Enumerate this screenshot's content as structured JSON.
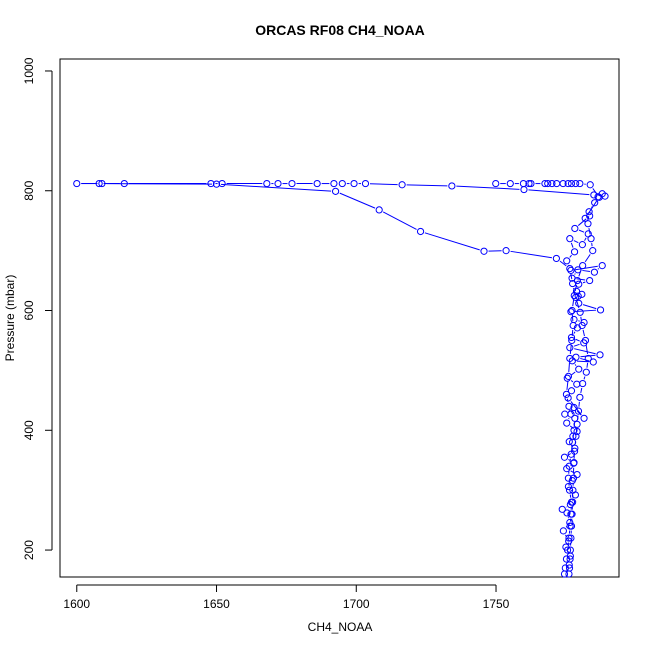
{
  "chart_data": {
    "type": "line",
    "title": "ORCAS RF08 CH4_NOAA",
    "xlabel": "CH4_NOAA",
    "ylabel": "Pressure (mbar)",
    "xlim": [
      1594,
      1794
    ],
    "ylim": [
      1020,
      155
    ],
    "y_reversed": true,
    "grid": false,
    "x_ticks": [
      1600,
      1650,
      1700,
      1750
    ],
    "y_ticks": [
      200,
      400,
      600,
      800,
      1000
    ],
    "series": [
      {
        "color": "#0000ff",
        "marker": "open-circle",
        "points": [
          [
            1774.5,
            160
          ],
          [
            1774.8,
            170
          ],
          [
            1775.2,
            185
          ],
          [
            1775.6,
            200
          ],
          [
            1776.1,
            220
          ],
          [
            1776.5,
            240
          ],
          [
            1776.8,
            260
          ],
          [
            1777.0,
            280
          ],
          [
            1776.3,
            300
          ],
          [
            1775.9,
            320
          ],
          [
            1776.2,
            340
          ],
          [
            1776.9,
            360
          ],
          [
            1777.4,
            380
          ],
          [
            1777.9,
            400
          ],
          [
            1778.2,
            420
          ],
          [
            1776.1,
            440
          ],
          [
            1775.2,
            460
          ],
          [
            1775.9,
            490
          ],
          [
            1776.4,
            520
          ],
          [
            1777.1,
            550
          ],
          [
            1777.6,
            575
          ],
          [
            1777.2,
            600
          ],
          [
            1778.0,
            625
          ],
          [
            1779.1,
            650
          ],
          [
            1781.0,
            675
          ],
          [
            1784.6,
            700
          ],
          [
            1784.0,
            720
          ],
          [
            1782.9,
            745
          ],
          [
            1783.3,
            765
          ],
          [
            1785.3,
            780
          ],
          [
            1786.5,
            790
          ],
          [
            1788.0,
            795
          ],
          [
            1789.0,
            791
          ],
          [
            1785.0,
            793
          ],
          [
            1760.0,
            802
          ],
          [
            1734.2,
            808
          ],
          [
            1716.4,
            810
          ],
          [
            1703.3,
            812
          ],
          [
            1699.2,
            812
          ],
          [
            1695.0,
            812
          ],
          [
            1692.0,
            812
          ],
          [
            1686.0,
            812
          ],
          [
            1677.0,
            812
          ],
          [
            1672.0,
            812
          ],
          [
            1668.0,
            812
          ],
          [
            1652.0,
            812
          ],
          [
            1648.0,
            812
          ],
          [
            1617.0,
            812
          ],
          [
            1608.0,
            812
          ],
          [
            1600.0,
            812
          ],
          [
            1609.0,
            812
          ],
          [
            1650.0,
            811
          ],
          [
            1692.6,
            799
          ],
          [
            1708.2,
            768
          ],
          [
            1723.0,
            732
          ],
          [
            1745.7,
            699
          ],
          [
            1753.6,
            700
          ],
          [
            1771.6,
            687
          ],
          [
            1776.4,
            670
          ],
          [
            1777.4,
            645
          ],
          [
            1778.5,
            622
          ],
          [
            1780.1,
            597
          ],
          [
            1780.8,
            575
          ],
          [
            1782.0,
            550
          ],
          [
            1783.0,
            520
          ],
          [
            1782.3,
            497
          ],
          [
            1781.0,
            478
          ],
          [
            1780.0,
            455
          ],
          [
            1779.5,
            432
          ],
          [
            1779.0,
            410
          ],
          [
            1778.6,
            390
          ],
          [
            1778.2,
            370
          ],
          [
            1777.8,
            345
          ],
          [
            1777.7,
            320
          ],
          [
            1777.5,
            300
          ],
          [
            1777.4,
            280
          ],
          [
            1777.2,
            260
          ],
          [
            1777.0,
            240
          ],
          [
            1776.8,
            220
          ],
          [
            1776.6,
            200
          ],
          [
            1776.5,
            185
          ],
          [
            1776.3,
            170
          ],
          [
            1776.1,
            160
          ],
          [
            1776.2,
            175
          ],
          [
            1776.6,
            190
          ],
          [
            1775.0,
            205
          ],
          [
            1776.0,
            215
          ],
          [
            1774.1,
            232
          ],
          [
            1776.4,
            246
          ],
          [
            1775.4,
            262
          ],
          [
            1773.7,
            268
          ],
          [
            1776.6,
            276
          ],
          [
            1778.4,
            292
          ],
          [
            1775.9,
            306
          ],
          [
            1777.3,
            316
          ],
          [
            1779.0,
            326
          ],
          [
            1775.3,
            336
          ],
          [
            1777.9,
            346
          ],
          [
            1774.5,
            355
          ],
          [
            1778.1,
            365
          ],
          [
            1776.2,
            381
          ],
          [
            1777.5,
            390
          ],
          [
            1779.0,
            398
          ],
          [
            1775.3,
            412
          ],
          [
            1776.8,
            427
          ],
          [
            1774.6,
            427
          ],
          [
            1777.9,
            438
          ],
          [
            1781.5,
            420
          ],
          [
            1775.8,
            454
          ],
          [
            1777.0,
            466
          ],
          [
            1778.9,
            477
          ],
          [
            1775.5,
            487
          ],
          [
            1779.6,
            502
          ],
          [
            1777.3,
            516
          ],
          [
            1784.8,
            514
          ],
          [
            1778.6,
            522
          ],
          [
            1787.2,
            526
          ],
          [
            1776.4,
            538
          ],
          [
            1781.4,
            546
          ],
          [
            1777.0,
            555
          ],
          [
            1779.1,
            571
          ],
          [
            1781.5,
            580
          ],
          [
            1777.9,
            585
          ],
          [
            1776.8,
            598
          ],
          [
            1787.4,
            601
          ],
          [
            1779.6,
            612
          ],
          [
            1779.4,
            624
          ],
          [
            1780.7,
            627
          ],
          [
            1778.8,
            632
          ],
          [
            1779.6,
            644
          ],
          [
            1783.5,
            650
          ],
          [
            1777.2,
            654
          ],
          [
            1779.3,
            668
          ],
          [
            1785.2,
            664
          ],
          [
            1788.0,
            675
          ],
          [
            1776.8,
            667
          ],
          [
            1775.3,
            683
          ],
          [
            1778.1,
            698
          ],
          [
            1776.4,
            720
          ],
          [
            1780.9,
            710
          ],
          [
            1783.0,
            728
          ],
          [
            1778.2,
            737
          ],
          [
            1783.5,
            758
          ],
          [
            1781.9,
            754
          ],
          [
            1786.9,
            789
          ],
          [
            1783.7,
            810
          ],
          [
            1780.0,
            812
          ],
          [
            1778.5,
            812
          ],
          [
            1777.0,
            812
          ],
          [
            1775.8,
            812
          ],
          [
            1774.0,
            812
          ],
          [
            1771.7,
            812
          ],
          [
            1770.0,
            812
          ],
          [
            1768.5,
            812
          ],
          [
            1767.5,
            812
          ],
          [
            1762.5,
            812
          ],
          [
            1761.8,
            812
          ],
          [
            1759.8,
            812
          ],
          [
            1755.1,
            812
          ],
          [
            1749.9,
            812
          ]
        ]
      }
    ]
  }
}
